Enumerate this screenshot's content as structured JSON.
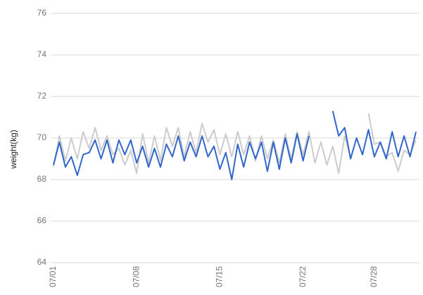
{
  "chart_data": {
    "type": "line",
    "y_label": "weight(kg)",
    "categories": [
      "07/01",
      null,
      null,
      null,
      null,
      null,
      null,
      null,
      null,
      null,
      null,
      null,
      null,
      null,
      "07/08",
      null,
      null,
      null,
      null,
      null,
      null,
      null,
      null,
      null,
      null,
      null,
      null,
      null,
      "07/15",
      null,
      null,
      null,
      null,
      null,
      null,
      null,
      null,
      null,
      null,
      null,
      null,
      null,
      "07/22",
      null,
      null,
      null,
      null,
      null,
      null,
      null,
      null,
      null,
      null,
      null,
      "07/28",
      null,
      null,
      null,
      null,
      null,
      null,
      null
    ],
    "series": [
      {
        "color": "#cccccc",
        "values": [
          68.6,
          70.1,
          68.9,
          70.0,
          69.0,
          70.3,
          69.5,
          70.5,
          69.4,
          70.1,
          69.2,
          69.5,
          68.7,
          69.4,
          68.3,
          70.2,
          68.8,
          70.1,
          68.9,
          70.5,
          69.6,
          70.5,
          69.1,
          70.3,
          69.3,
          70.7,
          69.8,
          70.4,
          69.2,
          70.2,
          69.1,
          70.3,
          69.2,
          70.1,
          68.9,
          70.1,
          69.0,
          69.9,
          68.8,
          70.2,
          69.0,
          70.3,
          69.2,
          70.3,
          68.8,
          69.8,
          68.7,
          69.6,
          68.3,
          70.1,
          69.1,
          null,
          null,
          71.2,
          69.7,
          69.8,
          69.1,
          69.3,
          68.4,
          69.4,
          69.2,
          69.9
        ]
      },
      {
        "color": "#3366cc",
        "values": [
          68.7,
          69.8,
          68.6,
          69.1,
          68.2,
          69.2,
          69.3,
          69.9,
          69.0,
          69.9,
          68.8,
          69.9,
          69.2,
          69.9,
          68.8,
          69.6,
          68.6,
          69.5,
          68.6,
          69.7,
          69.1,
          70.1,
          68.9,
          69.8,
          69.1,
          70.1,
          69.1,
          69.6,
          68.5,
          69.3,
          68.0,
          69.7,
          68.6,
          69.8,
          69.0,
          69.8,
          68.4,
          69.8,
          68.5,
          70.0,
          68.8,
          70.2,
          68.9,
          70.1,
          null,
          null,
          null,
          71.3,
          70.1,
          70.5,
          69.0,
          70.0,
          69.2,
          70.4,
          69.1,
          69.8,
          69.0,
          70.3,
          69.1,
          70.1,
          69.1,
          70.3
        ]
      }
    ],
    "ylim": [
      64,
      76
    ],
    "yticks": [
      64,
      66,
      68,
      70,
      72,
      74,
      76
    ],
    "grid": true
  }
}
